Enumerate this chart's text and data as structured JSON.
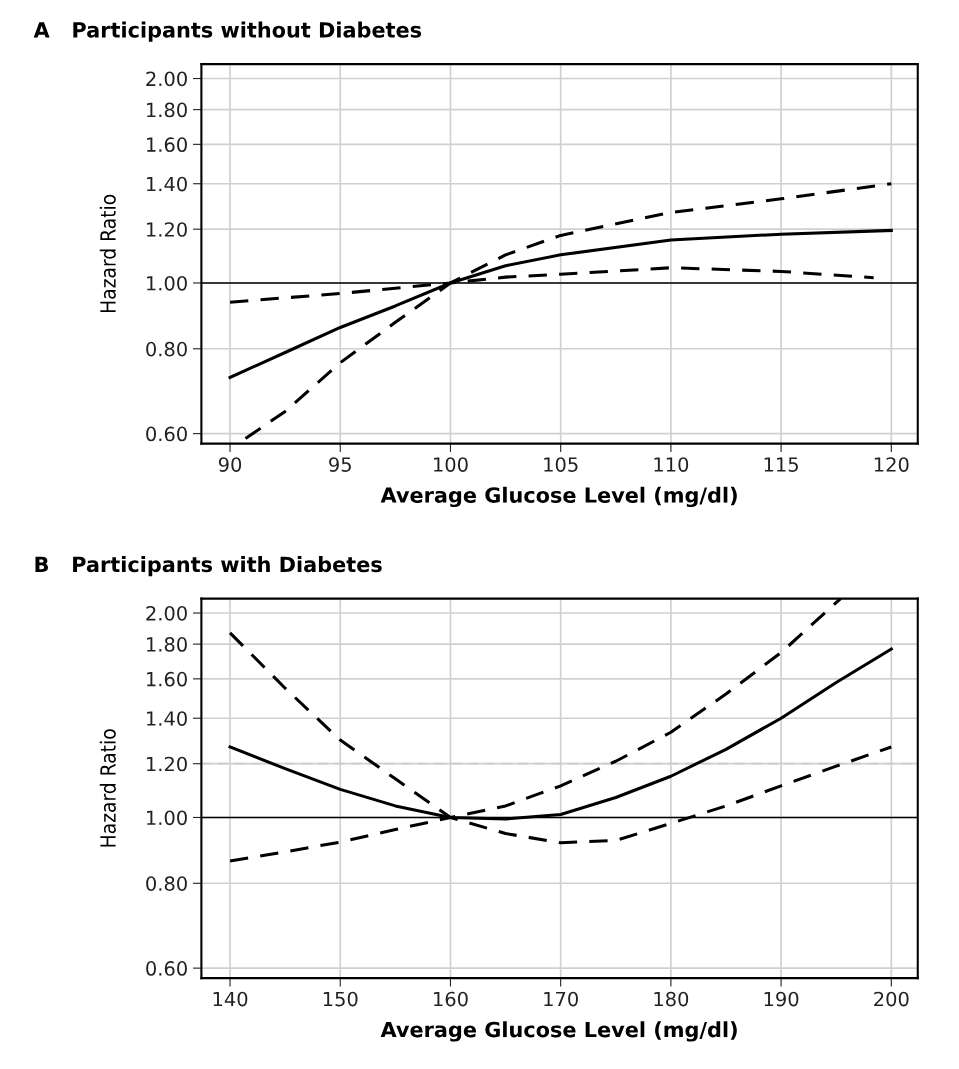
{
  "chart_data": [
    {
      "type": "line",
      "title": "A   Participants without Diabetes",
      "xlabel": "Average Glucose Level (mg/dl)",
      "ylabel": "Hazard Ratio",
      "log": "y",
      "grid": true,
      "xlim": [
        88.7,
        121.2
      ],
      "xticks": [
        90,
        95,
        100,
        105,
        110,
        115,
        120
      ],
      "ylim": [
        0.58,
        2.1
      ],
      "yticks": [
        {
          "value": 0.6,
          "label": "0.60"
        },
        {
          "value": 0.8,
          "label": "0.80"
        },
        {
          "value": 1.0,
          "label": "1.00"
        },
        {
          "value": 1.2,
          "label": "1.20"
        },
        {
          "value": 1.4,
          "label": "1.40"
        },
        {
          "value": 1.6,
          "label": "1.60"
        },
        {
          "value": 1.8,
          "label": "1.80"
        },
        {
          "value": 2.0,
          "label": "2.00"
        }
      ],
      "ref_lines": [
        {
          "axis": "y",
          "value": 1.0,
          "color": "#000000",
          "line_style": "solid"
        }
      ],
      "series": [
        {
          "color": "#000000",
          "line_style": "solid",
          "x": [
            90,
            92.5,
            95,
            97.5,
            100,
            102.5,
            105,
            110,
            115,
            120
          ],
          "values": [
            0.726,
            0.79,
            0.86,
            0.925,
            1.0,
            1.06,
            1.1,
            1.157,
            1.18,
            1.195
          ]
        },
        {
          "color": "#000000",
          "line_style": "dashed",
          "x": [
            90,
            95,
            100,
            102.5,
            105,
            110,
            115,
            120
          ],
          "values": [
            0.937,
            0.965,
            1.0,
            1.1,
            1.175,
            1.27,
            1.33,
            1.4
          ]
        },
        {
          "color": "#000000",
          "line_style": "dashed",
          "x": [
            90.7,
            92.5,
            95,
            97.5,
            100,
            102.5,
            105,
            110,
            115,
            119.2
          ],
          "values": [
            0.59,
            0.647,
            0.763,
            0.875,
            1.0,
            1.02,
            1.03,
            1.053,
            1.04,
            1.018
          ]
        }
      ]
    },
    {
      "type": "line",
      "title": "B   Participants with Diabetes",
      "xlabel": "Average Glucose Level (mg/dl)",
      "ylabel": "Hazard Ratio",
      "log": "y",
      "grid": true,
      "xlim": [
        137.4,
        202.4
      ],
      "xticks": [
        140,
        150,
        160,
        170,
        180,
        190,
        200
      ],
      "ylim": [
        0.58,
        2.1
      ],
      "yticks": [
        {
          "value": 0.6,
          "label": "0.60"
        },
        {
          "value": 0.8,
          "label": "0.80"
        },
        {
          "value": 1.0,
          "label": "1.00"
        },
        {
          "value": 1.2,
          "label": "1.20"
        },
        {
          "value": 1.4,
          "label": "1.40"
        },
        {
          "value": 1.6,
          "label": "1.60"
        },
        {
          "value": 1.8,
          "label": "1.80"
        },
        {
          "value": 2.0,
          "label": "2.00"
        }
      ],
      "ref_lines": [
        {
          "axis": "y",
          "value": 1.0,
          "color": "#000000",
          "line_style": "solid"
        },
        {
          "axis": "y",
          "value": 1.2,
          "color": "#cccccc",
          "line_style": "dashed"
        }
      ],
      "series": [
        {
          "color": "#000000",
          "line_style": "solid",
          "x": [
            140,
            145,
            150,
            155,
            160,
            165,
            170,
            175,
            180,
            185,
            190,
            195,
            200
          ],
          "values": [
            1.27,
            1.18,
            1.1,
            1.04,
            1.0,
            0.995,
            1.01,
            1.07,
            1.15,
            1.26,
            1.4,
            1.58,
            1.77
          ]
        },
        {
          "color": "#000000",
          "line_style": "dashed",
          "x": [
            140,
            145,
            150,
            155,
            160,
            165,
            170,
            175,
            180,
            185,
            190,
            195.4
          ],
          "values": [
            1.87,
            1.55,
            1.3,
            1.14,
            1.0,
            1.04,
            1.113,
            1.21,
            1.335,
            1.52,
            1.749,
            2.1
          ]
        },
        {
          "color": "#000000",
          "line_style": "dashed",
          "x": [
            140,
            145,
            150,
            155,
            160,
            165,
            170,
            175,
            180,
            185,
            190,
            195,
            200
          ],
          "values": [
            0.863,
            0.89,
            0.92,
            0.96,
            1.0,
            0.947,
            0.918,
            0.925,
            0.98,
            1.04,
            1.113,
            1.19,
            1.27
          ]
        }
      ]
    }
  ]
}
